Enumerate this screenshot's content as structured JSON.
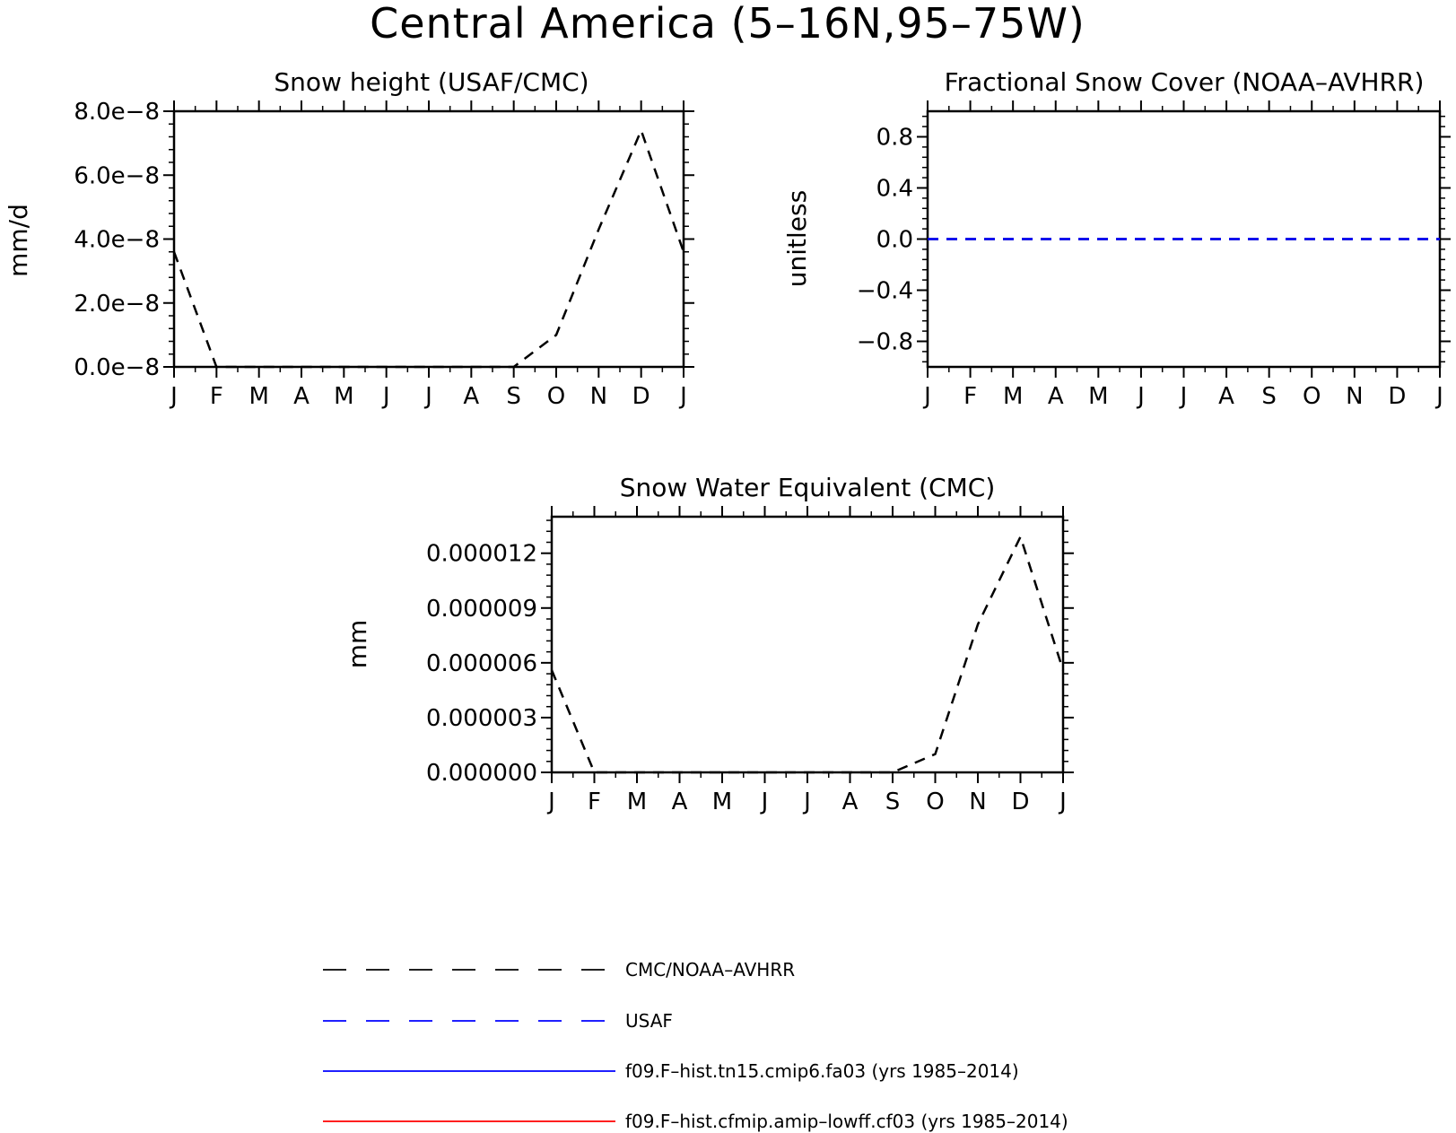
{
  "title": "Central America (5–16N,95–75W)",
  "colors": {
    "cmc": "#000000",
    "usaf": "#0000ff",
    "model_tn15": "#0000ff",
    "model_lowff": "#ff0000"
  },
  "chart_data": [
    {
      "type": "line",
      "title": "Snow height (USAF/CMC)",
      "xlabel": "",
      "ylabel": "mm/d",
      "categories": [
        "J",
        "F",
        "M",
        "A",
        "M",
        "J",
        "J",
        "A",
        "S",
        "O",
        "N",
        "D",
        "J"
      ],
      "ylim": [
        0,
        8e-08
      ],
      "yticks": [
        0,
        2e-08,
        4e-08,
        6e-08,
        8e-08
      ],
      "ytick_labels": [
        "0.0e−8",
        "2.0e−8",
        "4.0e−8",
        "6.0e−8",
        "8.0e−8"
      ],
      "grid": false,
      "series": [
        {
          "name": "CMC/NOAA–AVHRR",
          "style": "dashed",
          "color": "#000000",
          "values": [
            3.6e-08,
            0,
            0,
            0,
            0,
            0,
            0,
            0,
            0,
            1e-08,
            4.3e-08,
            7.4e-08,
            3.6e-08
          ]
        }
      ]
    },
    {
      "type": "line",
      "title": "Fractional Snow Cover (NOAA–AVHRR)",
      "xlabel": "",
      "ylabel": "unitless",
      "categories": [
        "J",
        "F",
        "M",
        "A",
        "M",
        "J",
        "J",
        "A",
        "S",
        "O",
        "N",
        "D",
        "J"
      ],
      "ylim": [
        -1.0,
        1.0
      ],
      "yticks": [
        -0.8,
        -0.4,
        0.0,
        0.4,
        0.8
      ],
      "ytick_labels": [
        "−0.8",
        "−0.4",
        "0.0",
        "0.4",
        "0.8"
      ],
      "grid": false,
      "series": [
        {
          "name": "CMC/NOAA–AVHRR",
          "style": "dashed",
          "color": "#000000",
          "values": [
            0,
            0,
            0,
            0,
            0,
            0,
            0,
            0,
            0,
            0,
            0,
            0,
            0
          ]
        },
        {
          "name": "USAF",
          "style": "dashed",
          "color": "#0000ff",
          "values": [
            0,
            0,
            0,
            0,
            0,
            0,
            0,
            0,
            0,
            0,
            0,
            0,
            0
          ]
        }
      ]
    },
    {
      "type": "line",
      "title": "Snow Water Equivalent (CMC)",
      "xlabel": "",
      "ylabel": "mm",
      "categories": [
        "J",
        "F",
        "M",
        "A",
        "M",
        "J",
        "J",
        "A",
        "S",
        "O",
        "N",
        "D",
        "J"
      ],
      "ylim": [
        0,
        1.4e-05
      ],
      "yticks": [
        0,
        3e-06,
        6e-06,
        9e-06,
        1.2e-05
      ],
      "ytick_labels": [
        "0.000000",
        "0.000003",
        "0.000006",
        "0.000009",
        "0.000012"
      ],
      "grid": false,
      "series": [
        {
          "name": "CMC/NOAA–AVHRR",
          "style": "dashed",
          "color": "#000000",
          "values": [
            5.6e-06,
            0,
            0,
            0,
            0,
            0,
            0,
            0,
            0,
            1e-06,
            8.1e-06,
            1.29e-05,
            5.6e-06
          ]
        }
      ]
    }
  ],
  "legend": [
    {
      "label": "CMC/NOAA–AVHRR",
      "style": "dashed",
      "color": "#000000"
    },
    {
      "label": "USAF",
      "style": "dashed",
      "color": "#0000ff"
    },
    {
      "label": "f09.F–hist.tn15.cmip6.fa03 (yrs 1985–2014)",
      "style": "solid",
      "color": "#0000ff"
    },
    {
      "label": "f09.F–hist.cfmip.amip–lowff.cf03 (yrs 1985–2014)",
      "style": "solid",
      "color": "#ff0000"
    }
  ]
}
